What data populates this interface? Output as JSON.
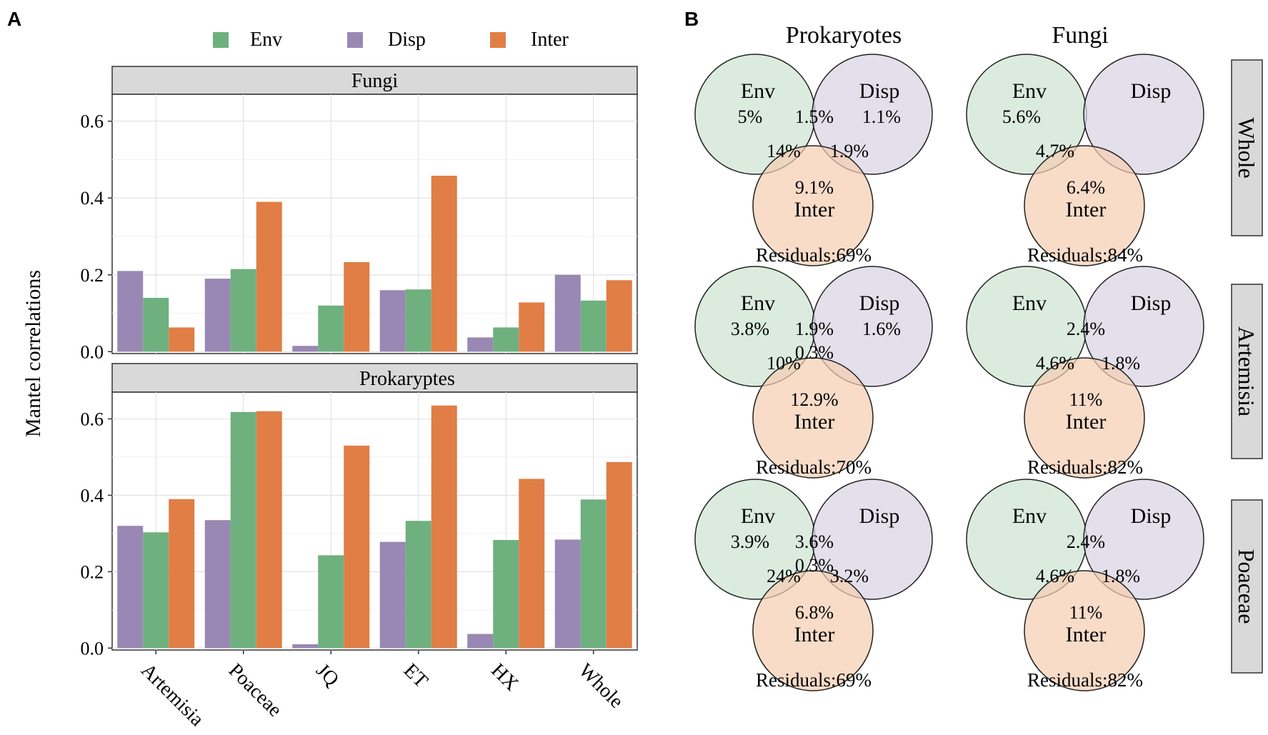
{
  "panels": {
    "a_label": "A",
    "b_label": "B"
  },
  "colors": {
    "Env": "#6fb07f",
    "Disp": "#9888b3",
    "Inter": "#e07e45",
    "env_circle": "#cfe6d4",
    "disp_circle": "#d9d5e6",
    "inter_circle": "#f5cdb0",
    "strip_bg": "#d9d9d9"
  },
  "chart_data": [
    {
      "type": "bar",
      "facet": "Fungi",
      "categories": [
        "Artemisia",
        "Poaceae",
        "JQ",
        "ET",
        "HX",
        "Whole"
      ],
      "series": [
        {
          "name": "Disp",
          "values": [
            0.21,
            0.19,
            0.015,
            0.16,
            0.037,
            0.2
          ]
        },
        {
          "name": "Env",
          "values": [
            0.14,
            0.215,
            0.12,
            0.162,
            0.063,
            0.133
          ]
        },
        {
          "name": "Inter",
          "values": [
            0.063,
            0.39,
            0.233,
            0.458,
            0.128,
            0.186
          ]
        }
      ],
      "ylabel": "Mantel correlations",
      "ylim": [
        -0.005,
        0.67
      ],
      "yticks": [
        0.0,
        0.2,
        0.4,
        0.6
      ],
      "ytick_labels": [
        "0.0",
        "0.2",
        "0.4",
        "0.6"
      ],
      "grid": true,
      "legend": {
        "entries": [
          "Env",
          "Disp",
          "Inter"
        ],
        "position": "top"
      }
    },
    {
      "type": "bar",
      "facet": "Prokaryptes",
      "categories": [
        "Artemisia",
        "Poaceae",
        "JQ",
        "ET",
        "HX",
        "Whole"
      ],
      "series": [
        {
          "name": "Disp",
          "values": [
            0.32,
            0.335,
            0.01,
            0.278,
            0.037,
            0.284
          ]
        },
        {
          "name": "Env",
          "values": [
            0.303,
            0.618,
            0.243,
            0.333,
            0.283,
            0.389
          ]
        },
        {
          "name": "Inter",
          "values": [
            0.39,
            0.62,
            0.53,
            0.635,
            0.443,
            0.487
          ]
        }
      ],
      "xlabels": [
        "Artemisia",
        "Poaceae",
        "JQ",
        "ET",
        "HX",
        "Whole"
      ],
      "ylim": [
        -0.005,
        0.67
      ],
      "yticks": [
        0.0,
        0.2,
        0.4,
        0.6
      ],
      "ytick_labels": [
        "0.0",
        "0.2",
        "0.4",
        "0.6"
      ],
      "grid": true
    }
  ],
  "venn": {
    "columns": [
      "Prokaryotes",
      "Fungi"
    ],
    "rows": [
      "Whole",
      "Artemisia",
      "Poaceae"
    ],
    "set_labels": {
      "env": "Env",
      "disp": "Disp",
      "inter": "Inter"
    },
    "grid": [
      [
        {
          "env": "5%",
          "disp": "1.1%",
          "env_disp": "1.5%",
          "env_inter": "14%",
          "disp_inter": "1.9%",
          "center": "",
          "inter": "9.1%",
          "residuals": "Residuals:69%"
        },
        {
          "env": "5.6%",
          "disp": "",
          "env_disp": "",
          "env_inter": "4.7%",
          "disp_inter": "",
          "center": "",
          "inter": "6.4%",
          "residuals": "Residuals:84%"
        }
      ],
      [
        {
          "env": "3.8%",
          "disp": "1.6%",
          "env_disp": "1.9%",
          "env_inter": "10%",
          "disp_inter": "",
          "center": "0.3%",
          "inter": "12.9%",
          "residuals": "Residuals:70%"
        },
        {
          "env": "",
          "disp": "",
          "env_disp": "2.4%",
          "env_inter": "4.6%",
          "disp_inter": "1.8%",
          "center": "",
          "inter": "11%",
          "residuals": "Residuals:82%"
        }
      ],
      [
        {
          "env": "3.9%",
          "disp": "",
          "env_disp": "3.6%",
          "env_inter": "24%",
          "disp_inter": "3.2%",
          "center": "0.3%",
          "inter": "6.8%",
          "residuals": "Residuals:69%"
        },
        {
          "env": "",
          "disp": "",
          "env_disp": "2.4%",
          "env_inter": "4.6%",
          "disp_inter": "1.8%",
          "center": "",
          "inter": "11%",
          "residuals": "Residuals:82%"
        }
      ]
    ]
  }
}
